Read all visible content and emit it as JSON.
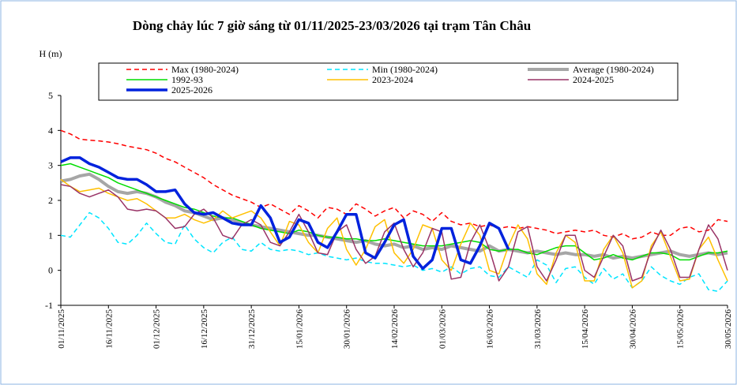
{
  "chart_data": {
    "type": "line",
    "title": "Dòng chảy lúc 7 giờ sáng từ 01/11/2025-23/03/2026 tại trạm Tân Châu",
    "y_label": "H (m)",
    "legend": "top",
    "grid": false,
    "xlim": [
      "01/11/2025",
      "30/05/2026"
    ],
    "xticks": [
      "01/11/2025",
      "16/11/2025",
      "01/12/2025",
      "16/12/2025",
      "31/12/2025",
      "15/01/2026",
      "30/01/2026",
      "14/02/2026",
      "01/03/2026",
      "16/03/2026",
      "31/03/2026",
      "15/04/2026",
      "30/04/2026",
      "15/05/2026",
      "30/05/2026"
    ],
    "ylim": [
      -1,
      5
    ],
    "yticks": [
      -1,
      0,
      1,
      2,
      3,
      4,
      5
    ],
    "x": [
      "01/11/2025",
      "04/11/2025",
      "07/11/2025",
      "10/11/2025",
      "13/11/2025",
      "16/11/2025",
      "19/11/2025",
      "22/11/2025",
      "25/11/2025",
      "28/11/2025",
      "01/12/2025",
      "04/12/2025",
      "07/12/2025",
      "10/12/2025",
      "13/12/2025",
      "16/12/2025",
      "19/12/2025",
      "22/12/2025",
      "25/12/2025",
      "28/12/2025",
      "31/12/2025",
      "03/01/2026",
      "06/01/2026",
      "09/01/2026",
      "12/01/2026",
      "15/01/2026",
      "18/01/2026",
      "21/01/2026",
      "24/01/2026",
      "27/01/2026",
      "30/01/2026",
      "02/02/2026",
      "05/02/2026",
      "08/02/2026",
      "11/02/2026",
      "14/02/2026",
      "17/02/2026",
      "20/02/2026",
      "23/02/2026",
      "26/02/2026",
      "01/03/2026",
      "04/03/2026",
      "07/03/2026",
      "10/03/2026",
      "13/03/2026",
      "16/03/2026",
      "19/03/2026",
      "22/03/2026",
      "25/03/2026",
      "28/03/2026",
      "31/03/2026",
      "03/04/2026",
      "06/04/2026",
      "09/04/2026",
      "12/04/2026",
      "15/04/2026",
      "18/04/2026",
      "21/04/2026",
      "24/04/2026",
      "27/04/2026",
      "30/04/2026",
      "03/05/2026",
      "06/05/2026",
      "09/05/2026",
      "12/05/2026",
      "15/05/2026",
      "18/05/2026",
      "21/05/2026",
      "24/05/2026",
      "27/05/2026",
      "30/05/2026"
    ],
    "series": [
      {
        "name": "Max (1980-2024)",
        "color": "#ff0000",
        "dash": "dashed",
        "width": 1.5,
        "values": [
          4.0,
          3.9,
          3.75,
          3.72,
          3.7,
          3.67,
          3.62,
          3.55,
          3.5,
          3.45,
          3.35,
          3.2,
          3.1,
          2.95,
          2.8,
          2.65,
          2.45,
          2.3,
          2.15,
          2.05,
          1.95,
          1.8,
          1.9,
          1.75,
          1.6,
          1.85,
          1.7,
          1.5,
          1.8,
          1.75,
          1.6,
          1.9,
          1.75,
          1.55,
          1.7,
          1.8,
          1.5,
          1.7,
          1.6,
          1.4,
          1.65,
          1.4,
          1.3,
          1.35,
          1.25,
          1.3,
          1.2,
          1.25,
          1.2,
          1.25,
          1.2,
          1.15,
          1.05,
          1.1,
          1.15,
          1.1,
          1.15,
          1.0,
          0.95,
          1.05,
          0.9,
          0.95,
          1.1,
          1.0,
          1.0,
          1.2,
          1.25,
          1.1,
          1.15,
          1.45,
          1.4
        ]
      },
      {
        "name": "Min (1980-2024)",
        "color": "#00e5ff",
        "dash": "dashed",
        "width": 1.5,
        "values": [
          1.0,
          0.95,
          1.3,
          1.65,
          1.5,
          1.2,
          0.8,
          0.75,
          1.0,
          1.35,
          1.05,
          0.8,
          0.75,
          1.3,
          0.9,
          0.65,
          0.5,
          0.8,
          0.95,
          0.6,
          0.55,
          0.8,
          0.6,
          0.55,
          0.6,
          0.55,
          0.45,
          0.5,
          0.4,
          0.35,
          0.3,
          0.35,
          0.25,
          0.2,
          0.2,
          0.15,
          0.1,
          0.15,
          0.0,
          0.05,
          -0.05,
          0.1,
          -0.1,
          0.05,
          0.1,
          -0.15,
          -0.2,
          0.1,
          -0.05,
          -0.2,
          0.3,
          0.15,
          -0.35,
          0.05,
          0.1,
          -0.2,
          -0.4,
          0.05,
          -0.25,
          -0.1,
          -0.5,
          -0.3,
          0.1,
          -0.15,
          -0.3,
          -0.4,
          -0.2,
          -0.1,
          -0.55,
          -0.6,
          -0.3
        ]
      },
      {
        "name": "Average (1980-2024)",
        "color": "#a6a6a6",
        "dash": "solid",
        "width": 4,
        "values": [
          2.55,
          2.6,
          2.7,
          2.75,
          2.6,
          2.4,
          2.25,
          2.2,
          2.25,
          2.2,
          2.1,
          1.95,
          1.85,
          1.7,
          1.65,
          1.55,
          1.45,
          1.5,
          1.45,
          1.35,
          1.3,
          1.25,
          1.2,
          1.15,
          1.1,
          1.05,
          1.0,
          1.0,
          0.95,
          0.9,
          0.85,
          0.8,
          0.85,
          0.75,
          0.7,
          0.75,
          0.65,
          0.7,
          0.6,
          0.65,
          0.6,
          0.7,
          0.65,
          0.6,
          0.55,
          0.7,
          0.55,
          0.6,
          0.55,
          0.5,
          0.55,
          0.5,
          0.45,
          0.5,
          0.45,
          0.45,
          0.4,
          0.45,
          0.35,
          0.4,
          0.35,
          0.4,
          0.45,
          0.5,
          0.55,
          0.45,
          0.4,
          0.45,
          0.5,
          0.45,
          0.5
        ]
      },
      {
        "name": "1992-93",
        "color": "#00dd00",
        "dash": "solid",
        "width": 1.5,
        "values": [
          3.0,
          3.05,
          2.95,
          2.85,
          2.75,
          2.65,
          2.5,
          2.4,
          2.3,
          2.2,
          2.1,
          2.0,
          1.9,
          1.8,
          1.75,
          1.65,
          1.55,
          1.5,
          1.5,
          1.4,
          1.3,
          1.2,
          1.15,
          1.1,
          1.05,
          1.15,
          1.1,
          1.0,
          0.95,
          0.95,
          0.9,
          0.9,
          0.85,
          0.85,
          0.9,
          0.85,
          0.8,
          0.75,
          0.7,
          0.7,
          0.7,
          0.75,
          0.8,
          0.85,
          0.8,
          0.6,
          0.55,
          0.6,
          0.6,
          0.5,
          0.45,
          0.55,
          0.65,
          0.7,
          0.7,
          0.5,
          0.3,
          0.35,
          0.45,
          0.35,
          0.3,
          0.4,
          0.5,
          0.5,
          0.45,
          0.3,
          0.3,
          0.4,
          0.5,
          0.5,
          0.55
        ]
      },
      {
        "name": "2023-2024",
        "color": "#ffc000",
        "dash": "solid",
        "width": 1.5,
        "values": [
          2.6,
          2.4,
          2.25,
          2.3,
          2.35,
          2.2,
          2.1,
          2.0,
          2.05,
          1.9,
          1.7,
          1.5,
          1.5,
          1.6,
          1.45,
          1.35,
          1.45,
          1.7,
          1.5,
          1.6,
          1.7,
          1.5,
          1.1,
          0.7,
          1.4,
          1.3,
          0.8,
          0.5,
          1.2,
          1.5,
          0.6,
          0.15,
          0.6,
          1.25,
          1.45,
          0.5,
          0.2,
          0.6,
          1.3,
          1.2,
          0.3,
          0.0,
          0.75,
          1.35,
          1.0,
          0.0,
          -0.1,
          0.7,
          1.3,
          0.9,
          -0.1,
          -0.4,
          0.5,
          1.0,
          0.8,
          -0.3,
          -0.3,
          0.6,
          1.0,
          0.5,
          -0.5,
          -0.3,
          0.7,
          1.1,
          0.4,
          -0.3,
          -0.25,
          0.6,
          0.95,
          0.3,
          -0.3
        ]
      },
      {
        "name": "2024-2025",
        "color": "#993366",
        "dash": "solid",
        "width": 1.5,
        "values": [
          2.45,
          2.4,
          2.2,
          2.1,
          2.2,
          2.3,
          2.1,
          1.75,
          1.7,
          1.75,
          1.7,
          1.5,
          1.2,
          1.25,
          1.6,
          1.75,
          1.5,
          1.0,
          0.9,
          1.3,
          1.45,
          1.3,
          0.8,
          0.7,
          1.1,
          1.6,
          1.1,
          0.5,
          0.45,
          1.1,
          1.3,
          0.6,
          0.2,
          0.4,
          1.1,
          1.35,
          0.6,
          0.1,
          0.5,
          1.2,
          1.1,
          -0.25,
          -0.2,
          0.8,
          1.3,
          0.6,
          -0.3,
          0.1,
          1.1,
          1.25,
          0.1,
          -0.3,
          0.3,
          1.0,
          1.0,
          0.0,
          -0.2,
          0.4,
          1.0,
          0.7,
          -0.3,
          -0.2,
          0.6,
          1.15,
          0.6,
          -0.2,
          -0.2,
          0.6,
          1.3,
          0.9,
          0.0
        ]
      },
      {
        "name": "2025-2026",
        "color": "#0022dd",
        "dash": "solid",
        "width": 3.5,
        "values": [
          3.1,
          3.22,
          3.22,
          3.05,
          2.95,
          2.8,
          2.65,
          2.6,
          2.6,
          2.45,
          2.25,
          2.25,
          2.3,
          1.9,
          1.65,
          1.6,
          1.65,
          1.5,
          1.35,
          1.3,
          1.3,
          1.85,
          1.5,
          0.8,
          0.95,
          1.45,
          1.35,
          0.8,
          0.65,
          1.1,
          1.6,
          1.6,
          0.5,
          0.35,
          0.8,
          1.3,
          1.45,
          0.4,
          0.05,
          0.3,
          1.2,
          1.2,
          0.3,
          0.2,
          0.7,
          1.35,
          1.2,
          0.6,
          null,
          null,
          null,
          null,
          null,
          null,
          null,
          null,
          null,
          null,
          null,
          null,
          null,
          null,
          null,
          null,
          null,
          null,
          null,
          null,
          null,
          null,
          null
        ]
      }
    ]
  }
}
